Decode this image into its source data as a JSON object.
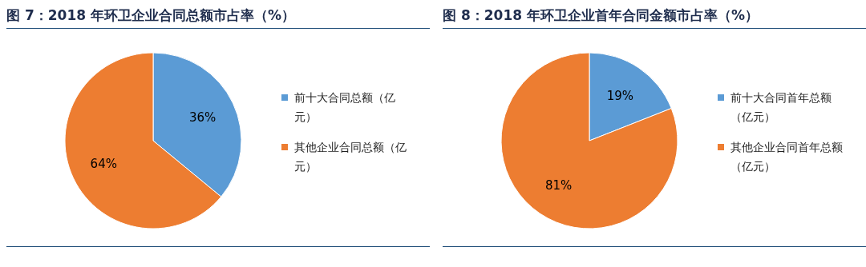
{
  "chart_data": [
    {
      "type": "pie",
      "title": "图 7：2018 年环卫企业合同总额市占率（%）",
      "categories": [
        "前十大合同总额（亿元）",
        "其他企业合同总额（亿元）"
      ],
      "values": [
        36,
        64
      ],
      "value_labels": [
        "36%",
        "64%"
      ],
      "colors": [
        "#5b9bd5",
        "#ed7d31"
      ],
      "legend": "right"
    },
    {
      "type": "pie",
      "title": "图 8：2018 年环卫企业首年合同金额市占率（%）",
      "categories": [
        "前十大合同首年总额（亿元）",
        "其他企业合同首年总额（亿元）"
      ],
      "values": [
        19,
        81
      ],
      "value_labels": [
        "19%",
        "81%"
      ],
      "colors": [
        "#5b9bd5",
        "#ed7d31"
      ],
      "legend": "right"
    }
  ]
}
